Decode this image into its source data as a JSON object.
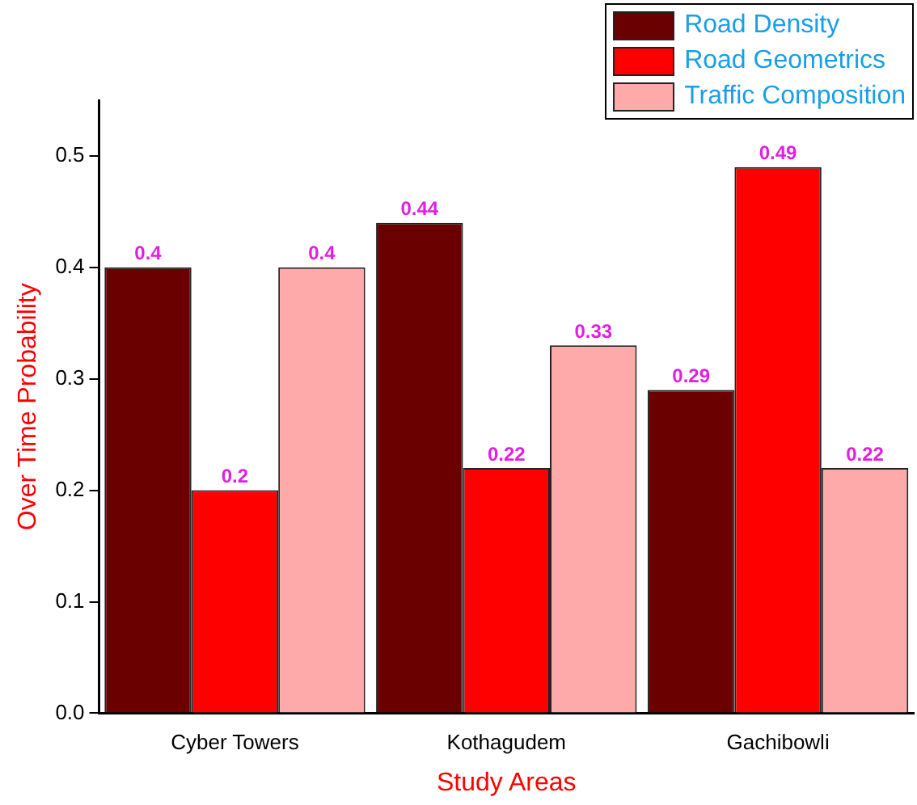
{
  "chart_data": {
    "type": "bar",
    "xlabel": "Study Areas",
    "ylabel": "Over Time Probability",
    "categories": [
      "Cyber Towers",
      "Kothagudem",
      "Gachibowli"
    ],
    "series": [
      {
        "name": "Road Density",
        "color": "#6b0000",
        "values": [
          0.4,
          0.44,
          0.29
        ]
      },
      {
        "name": "Road Geometrics",
        "color": "#ff0000",
        "values": [
          0.2,
          0.22,
          0.49
        ]
      },
      {
        "name": "Traffic Composition",
        "color": "#ffaaaa",
        "values": [
          0.4,
          0.33,
          0.22
        ]
      }
    ],
    "ylim": [
      0,
      0.55
    ],
    "yticks": [
      {
        "value": 0,
        "label": "0.0"
      },
      {
        "value": 0.1,
        "label": "0.1"
      },
      {
        "value": 0.2,
        "label": "0.2"
      },
      {
        "value": 0.3,
        "label": "0.3"
      },
      {
        "value": 0.4,
        "label": "0.4"
      },
      {
        "value": 0.5,
        "label": "0.5"
      }
    ],
    "grid": false,
    "legend": "top right",
    "data_labels": true
  }
}
